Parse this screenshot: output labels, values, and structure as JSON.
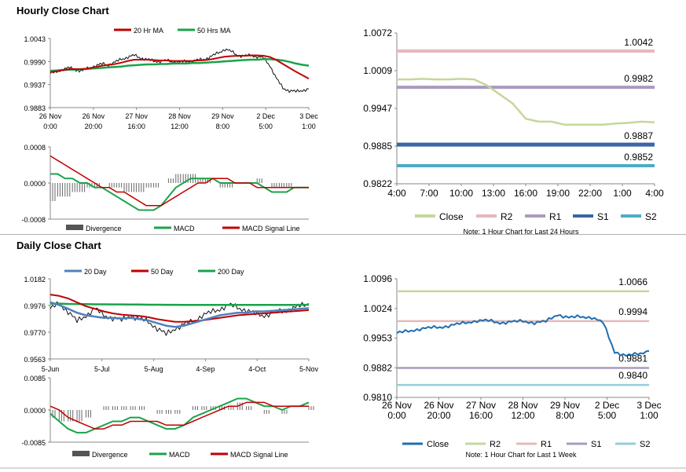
{
  "hourly": {
    "title": "Hourly Close Chart",
    "price_chart": {
      "type": "line",
      "legend": [
        "20 Hr MA",
        "50 Hrs MA"
      ],
      "colors": {
        "close": "#111111",
        "ma20": "#c00000",
        "ma50": "#1aa34a"
      },
      "yticks": [
        "1.0043",
        "0.9990",
        "0.9937",
        "0.9883"
      ],
      "ylim": [
        0.9883,
        1.0043
      ],
      "xticks": [
        [
          "26 Nov",
          "0:00"
        ],
        [
          "26 Nov",
          "20:00"
        ],
        [
          "27 Nov",
          "16:00"
        ],
        [
          "28 Nov",
          "12:00"
        ],
        [
          "29 Nov",
          "8:00"
        ],
        [
          "2 Dec",
          "5:00"
        ],
        [
          "3 Dec",
          "1:00"
        ]
      ],
      "close": [
        0.9962,
        0.9966,
        0.9972,
        0.9975,
        0.997,
        0.9968,
        0.9975,
        0.998,
        0.9984,
        0.9982,
        0.9988,
        0.9995,
        1.0,
        1.0004,
        0.9998,
        0.9994,
        0.9991,
        0.999,
        0.9992,
        0.9989,
        0.9988,
        0.999,
        0.9991,
        0.9993,
        0.9996,
        1.0002,
        1.001,
        1.0018,
        1.0013,
        1.0004,
        1.0002,
        1.0004,
        1.0001,
        0.9998,
        0.998,
        0.995,
        0.9928,
        0.9922,
        0.992,
        0.9923,
        0.9926
      ],
      "ma20": [
        0.9965,
        0.9967,
        0.997,
        0.9972,
        0.9972,
        0.9972,
        0.9974,
        0.9977,
        0.998,
        0.9982,
        0.9984,
        0.9987,
        0.9991,
        0.9994,
        0.9994,
        0.9994,
        0.9993,
        0.9992,
        0.9992,
        0.9991,
        0.9991,
        0.9991,
        0.9991,
        0.9992,
        0.9993,
        0.9995,
        0.9998,
        1.0001,
        1.0002,
        1.0003,
        1.0003,
        1.0004,
        1.0004,
        1.0003,
        1.0,
        0.9993,
        0.9984,
        0.9975,
        0.9966,
        0.9958,
        0.995
      ],
      "ma50": [
        0.9968,
        0.9969,
        0.997,
        0.9971,
        0.9971,
        0.9972,
        0.9973,
        0.9974,
        0.9975,
        0.9976,
        0.9977,
        0.9978,
        0.998,
        0.9981,
        0.9982,
        0.9983,
        0.9983,
        0.9984,
        0.9984,
        0.9985,
        0.9985,
        0.9985,
        0.9986,
        0.9986,
        0.9987,
        0.9988,
        0.9989,
        0.999,
        0.9991,
        0.9992,
        0.9993,
        0.9994,
        0.9994,
        0.9995,
        0.9995,
        0.9994,
        0.9992,
        0.9989,
        0.9985,
        0.9982,
        0.998
      ]
    },
    "macd_chart": {
      "legend": [
        "Divergence",
        "MACD",
        "MACD Signal Line"
      ],
      "yticks": [
        "0.0008",
        "0.0000",
        "-0.0008"
      ],
      "ylim": [
        -0.0008,
        0.0008
      ],
      "macd": [
        0.0002,
        0.0002,
        0.0001,
        0.0001,
        0.0,
        0.0,
        -0.0001,
        -0.0001,
        -0.0002,
        -0.0003,
        -0.0004,
        -0.0005,
        -0.0006,
        -0.0006,
        -0.0006,
        -0.0005,
        -0.0003,
        -0.0001,
        0.0,
        0.0001,
        0.0001,
        0.0001,
        0.0001,
        0.0,
        0.0,
        0.0,
        0.0,
        0.0,
        0.0,
        -0.0001,
        -0.0002,
        -0.0002,
        -0.0002,
        -0.0001,
        -0.0001,
        -0.0001
      ],
      "signal": [
        0.0006,
        0.0005,
        0.0004,
        0.0003,
        0.0002,
        0.0001,
        0.0,
        -0.0001,
        -0.0001,
        -0.0002,
        -0.0002,
        -0.0003,
        -0.0004,
        -0.0005,
        -0.0005,
        -0.0005,
        -0.0004,
        -0.0003,
        -0.0002,
        -0.0001,
        0.0,
        0.0,
        0.0001,
        0.0001,
        0.0001,
        0.0,
        0.0,
        0.0,
        -0.0001,
        -0.0001,
        -0.0001,
        -0.0001,
        -0.0001,
        -0.0001,
        -0.0001,
        -0.0001
      ],
      "divergence": [
        -0.0004,
        -0.0003,
        -0.0003,
        -0.0002,
        -0.0002,
        -0.0001,
        -0.0001,
        0.0,
        -0.0001,
        -0.0001,
        -0.0002,
        -0.0002,
        -0.0002,
        -0.0001,
        -0.0001,
        0.0,
        0.0001,
        0.0002,
        0.0002,
        0.0002,
        0.0001,
        0.0001,
        0.0,
        -0.0001,
        -0.0001,
        0.0,
        0.0,
        0.0,
        0.0001,
        0.0,
        -0.0001,
        -0.0001,
        -0.0001,
        0.0,
        0.0,
        0.0
      ]
    },
    "levels_chart": {
      "type": "line",
      "yticks": [
        "1.0072",
        "1.0009",
        "0.9947",
        "0.9885",
        "0.9822"
      ],
      "ylim": [
        0.9822,
        1.0072
      ],
      "xticks": [
        "4:00",
        "7:00",
        "10:00",
        "13:00",
        "16:00",
        "19:00",
        "22:00",
        "1:00",
        "4:00"
      ],
      "close": [
        0.9995,
        0.9995,
        0.9996,
        0.9995,
        0.9995,
        0.9996,
        0.9995,
        0.9985,
        0.997,
        0.9955,
        0.993,
        0.9925,
        0.9925,
        0.992,
        0.992,
        0.992,
        0.992,
        0.9922,
        0.9923,
        0.9925,
        0.9924
      ],
      "levels": [
        {
          "name": "R2",
          "value": 1.0042,
          "label": "1.0042",
          "color": "#e6b8b8"
        },
        {
          "name": "R1",
          "value": 0.9982,
          "label": "0.9982",
          "color": "#a99bbd"
        },
        {
          "name": "S1",
          "value": 0.9887,
          "label": "0.9887",
          "color": "#3a66a8"
        },
        {
          "name": "S2",
          "value": 0.9852,
          "label": "0.9852",
          "color": "#4bacc6"
        }
      ],
      "close_color": "#c4d79b",
      "legend": [
        "Close",
        "R2",
        "R1",
        "S1",
        "S2"
      ],
      "note": "Note: 1 Hour Chart for Last 24 Hours"
    }
  },
  "daily": {
    "title": "Daily Close Chart",
    "price_chart": {
      "type": "line",
      "legend": [
        "20 Day",
        "50 Day",
        "200 Day"
      ],
      "colors": {
        "close": "#111111",
        "ma20": "#4f81bd",
        "ma50": "#c00000",
        "ma200": "#1aa34a"
      },
      "yticks": [
        "1.0182",
        "0.9976",
        "0.9770",
        "0.9563"
      ],
      "ylim": [
        0.9563,
        1.0182
      ],
      "xticks": [
        "5-Jun",
        "5-Jul",
        "5-Aug",
        "4-Sep",
        "4-Oct",
        "5-Nov"
      ],
      "close": [
        0.995,
        0.999,
        0.993,
        0.985,
        0.99,
        0.995,
        0.99,
        0.988,
        0.986,
        0.99,
        0.987,
        0.985,
        0.98,
        0.975,
        0.98,
        0.983,
        0.985,
        0.99,
        0.992,
        0.995,
        0.998,
        0.996,
        0.994,
        0.991,
        0.99,
        0.992,
        0.993,
        0.995,
        0.997,
        0.999
      ],
      "ma20": [
        1.0,
        0.998,
        0.995,
        0.992,
        0.99,
        0.989,
        0.988,
        0.988,
        0.9875,
        0.988,
        0.987,
        0.986,
        0.984,
        0.982,
        0.981,
        0.982,
        0.984,
        0.986,
        0.988,
        0.99,
        0.991,
        0.992,
        0.992,
        0.993,
        0.993,
        0.9935,
        0.994,
        0.9945,
        0.995,
        0.9955
      ],
      "ma50": [
        1.006,
        1.005,
        1.003,
        1.0,
        0.997,
        0.995,
        0.993,
        0.9915,
        0.9905,
        0.99,
        0.9895,
        0.9885,
        0.987,
        0.986,
        0.985,
        0.985,
        0.9855,
        0.986,
        0.987,
        0.988,
        0.989,
        0.99,
        0.9905,
        0.991,
        0.9915,
        0.992,
        0.9925,
        0.993,
        0.9935,
        0.994
      ],
      "ma200": [
        0.999,
        0.999,
        0.9988,
        0.9987,
        0.9986,
        0.9985,
        0.9985,
        0.9984,
        0.9984,
        0.9983,
        0.9983,
        0.9982,
        0.9982,
        0.9981,
        0.9981,
        0.998,
        0.998,
        0.998,
        0.998,
        0.998,
        0.998,
        0.998,
        0.998,
        0.998,
        0.998,
        0.998,
        0.998,
        0.998,
        0.9981,
        0.9981
      ]
    },
    "macd_chart": {
      "legend": [
        "Divergence",
        "MACD",
        "MACD Signal Line"
      ],
      "yticks": [
        "0.0085",
        "0.0000",
        "-0.0085"
      ],
      "ylim": [
        -0.0085,
        0.0085
      ],
      "macd": [
        -0.001,
        -0.003,
        -0.005,
        -0.006,
        -0.006,
        -0.005,
        -0.004,
        -0.003,
        -0.003,
        -0.002,
        -0.002,
        -0.003,
        -0.004,
        -0.005,
        -0.005,
        -0.004,
        -0.002,
        -0.001,
        0.0,
        0.001,
        0.002,
        0.003,
        0.003,
        0.002,
        0.001,
        0.001,
        0.0,
        0.001,
        0.001,
        0.002
      ],
      "signal": [
        0.001,
        0.0,
        -0.002,
        -0.003,
        -0.004,
        -0.005,
        -0.005,
        -0.004,
        -0.004,
        -0.003,
        -0.003,
        -0.003,
        -0.003,
        -0.004,
        -0.004,
        -0.004,
        -0.003,
        -0.002,
        -0.001,
        0.0,
        0.001,
        0.001,
        0.002,
        0.002,
        0.002,
        0.001,
        0.001,
        0.001,
        0.001,
        0.001
      ],
      "divergence": [
        -0.002,
        -0.003,
        -0.003,
        -0.003,
        -0.002,
        0.0,
        0.001,
        0.001,
        0.001,
        0.001,
        0.001,
        0.0,
        -0.001,
        -0.001,
        -0.001,
        0.0,
        0.001,
        0.001,
        0.001,
        0.001,
        0.001,
        0.002,
        0.001,
        0.0,
        -0.001,
        0.0,
        -0.001,
        0.0,
        0.0,
        0.001
      ]
    },
    "levels_chart": {
      "type": "line",
      "yticks": [
        "1.0096",
        "1.0024",
        "0.9953",
        "0.9882",
        "0.9810"
      ],
      "ylim": [
        0.981,
        1.0096
      ],
      "xticks": [
        [
          "26 Nov",
          "0:00"
        ],
        [
          "26 Nov",
          "20:00"
        ],
        [
          "27 Nov",
          "16:00"
        ],
        [
          "28 Nov",
          "12:00"
        ],
        [
          "29 Nov",
          "8:00"
        ],
        [
          "2 Dec",
          "5:00"
        ],
        [
          "3 Dec",
          "1:00"
        ]
      ],
      "close": [
        0.9965,
        0.997,
        0.9975,
        0.9978,
        0.998,
        0.9985,
        0.999,
        0.9995,
        0.9995,
        0.999,
        0.9992,
        0.9994,
        0.999,
        0.9993,
        1.001,
        1.0002,
        1.0005,
        1.0003,
        0.999,
        0.992,
        0.991,
        0.9915,
        0.9922
      ],
      "levels": [
        {
          "name": "R2",
          "value": 1.0066,
          "label": "1.0066",
          "color": "#c4d79b"
        },
        {
          "name": "R1",
          "value": 0.9994,
          "label": "0.9994",
          "color": "#e6b8b8"
        },
        {
          "name": "S1",
          "value": 0.9881,
          "label": "0.9881",
          "color": "#a99bbd"
        },
        {
          "name": "S2",
          "value": 0.984,
          "label": "0.9840",
          "color": "#93cddd"
        }
      ],
      "close_color": "#1f6eb0",
      "legend": [
        "Close",
        "R2",
        "R1",
        "S1",
        "S2"
      ],
      "note": "Note: 1 Hour Chart for Last 1 Week"
    }
  },
  "chart_data": [
    {
      "type": "line",
      "title": "Hourly Close Chart",
      "series": [
        {
          "name": "20 Hr MA"
        },
        {
          "name": "50 Hrs MA"
        }
      ]
    },
    {
      "type": "line",
      "title": "Daily Close Chart",
      "series": [
        {
          "name": "20 Day"
        },
        {
          "name": "50 Day"
        },
        {
          "name": "200 Day"
        }
      ]
    }
  ]
}
